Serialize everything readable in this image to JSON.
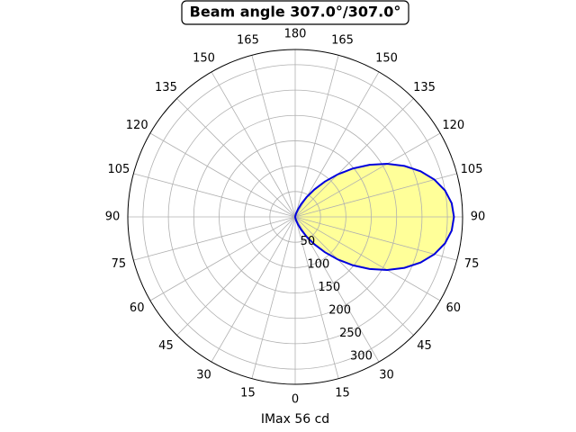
{
  "chart_data": {
    "type": "polar",
    "title": "Beam angle 307.0°/307.0°",
    "xlabel": "IMax 56 cd",
    "theta": [
      0,
      5,
      10,
      15,
      20,
      25,
      30,
      35,
      40,
      45,
      50,
      55,
      60,
      65,
      70,
      75,
      80,
      85,
      90,
      95,
      100,
      105,
      110,
      115,
      120,
      125,
      130,
      135,
      140,
      145,
      150,
      155,
      160,
      165,
      170,
      175,
      180
    ],
    "series": [
      {
        "color": "#0000dd",
        "fill": "#ffff99",
        "values": [
          0,
          0.3,
          2.3,
          7.1,
          15.5,
          28.0,
          44.9,
          66.0,
          90.8,
          118.6,
          148.4,
          179.1,
          209.4,
          237.6,
          263.0,
          284.0,
          299.9,
          309.7,
          313,
          309.7,
          299.9,
          284.0,
          263.0,
          237.6,
          209.4,
          179.1,
          148.4,
          118.6,
          90.8,
          66.0,
          44.9,
          28.0,
          15.5,
          7.1,
          2.3,
          0.3,
          0
        ]
      }
    ],
    "rlim": [
      0,
      330
    ],
    "rticks": [
      50,
      100,
      150,
      200,
      250,
      300
    ],
    "rlabel_position": 25,
    "thetaticks": [
      0,
      15,
      30,
      45,
      60,
      75,
      90,
      105,
      120,
      135,
      150,
      165,
      180,
      {
        "value": 195,
        "label": "165"
      },
      {
        "value": 210,
        "label": "150"
      },
      {
        "value": 225,
        "label": "135"
      },
      {
        "value": 240,
        "label": "120"
      },
      {
        "value": 255,
        "label": "105"
      },
      {
        "value": 270,
        "label": "90"
      },
      {
        "value": 285,
        "label": "75"
      },
      {
        "value": 300,
        "label": "60"
      },
      {
        "value": 315,
        "label": "45"
      },
      {
        "value": 330,
        "label": "30"
      },
      {
        "value": 345,
        "label": "15"
      }
    ],
    "grid": true
  }
}
